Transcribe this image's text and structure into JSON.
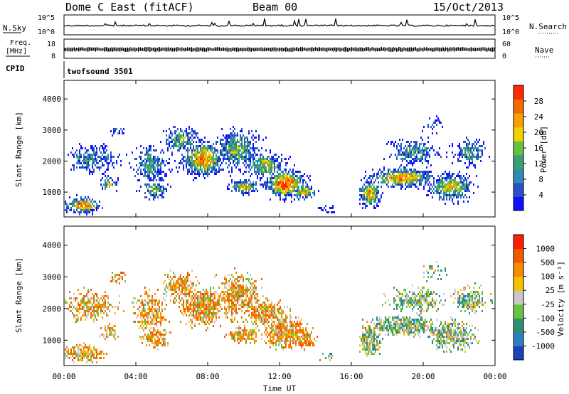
{
  "header": {
    "station": "Dome C East (fitACF)",
    "beam": "Beam 00",
    "date": "15/Oct/2013"
  },
  "sky_panel": {
    "left_label": "N.Sky",
    "right_label": "N.Search",
    "left_ticks": [
      "10^5",
      "10^0"
    ],
    "right_ticks": [
      "10^5",
      "10^0"
    ]
  },
  "freq_panel": {
    "left_label_1": "Freq.",
    "left_label_2": "[MHz]",
    "left_tick_top": "18",
    "left_tick_bottom": "8",
    "right_label": "Nave",
    "right_tick_top": "60",
    "right_tick_bottom": "0"
  },
  "cpid_panel": {
    "label": "CPID",
    "program": "twofsound 3501"
  },
  "chart_data": [
    {
      "type": "heatmap",
      "name": "power",
      "ylabel": "Slant Range [km]",
      "yticks": [
        "1000",
        "2000",
        "3000",
        "4000"
      ],
      "ylim": [
        200,
        4600
      ],
      "xlim": [
        0,
        24
      ],
      "colorbar_label": "Power [dB]",
      "colorbar_ticks": [
        "4",
        "8",
        "12",
        "16",
        "20",
        "24",
        "28"
      ],
      "colorbar_colors": [
        "#1010ff",
        "#2a50c8",
        "#2d8cb0",
        "#3aa070",
        "#68c040",
        "#f0d000",
        "#f7a000",
        "#f56a00",
        "#ff2800"
      ]
    },
    {
      "type": "heatmap",
      "name": "velocity",
      "ylabel": "Slant Range [km]",
      "yticks": [
        "1000",
        "2000",
        "3000",
        "4000"
      ],
      "ylim": [
        200,
        4600
      ],
      "xlim": [
        0,
        24
      ],
      "xlabel": "Time UT",
      "xticks": [
        "00:00",
        "04:00",
        "08:00",
        "12:00",
        "16:00",
        "20:00",
        "00:00"
      ],
      "colorbar_label": "Velocity [m s⁻¹]",
      "colorbar_ticks": [
        "1000",
        "500",
        "100",
        "25",
        "-25",
        "-100",
        "-500",
        "-1000"
      ],
      "colorbar_colors": [
        "#1a44b8",
        "#2e7fc0",
        "#2f9070",
        "#66c440",
        "#c8c8c8",
        "#f7c000",
        "#f78c00",
        "#f05a00",
        "#ff1e00"
      ]
    }
  ]
}
